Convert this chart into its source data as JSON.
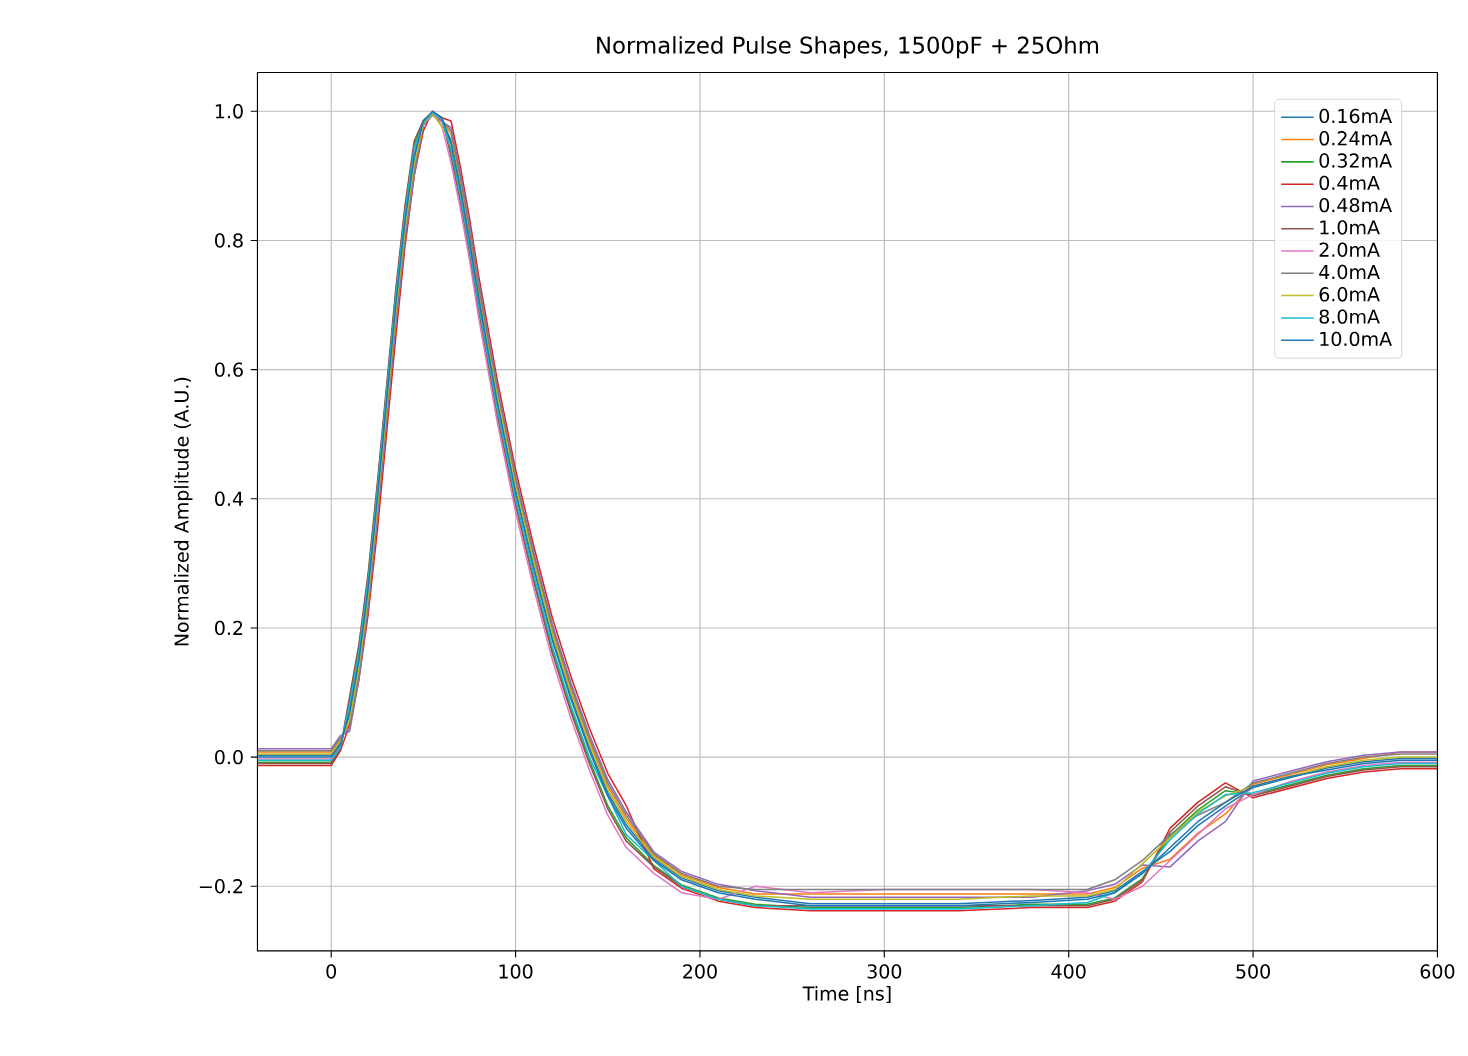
{
  "chart_data": {
    "type": "line",
    "title": "Normalized Pulse Shapes, 1500pF + 25Ohm",
    "xlabel": "Time [ns]",
    "ylabel": "Normalized Amplitude (A.U.)",
    "grid": true,
    "legend": "top right",
    "xlim": [
      -40,
      600
    ],
    "ylim": [
      -0.3,
      1.06
    ],
    "xticks": [
      0,
      100,
      200,
      300,
      400,
      500,
      600
    ],
    "yticks": [
      {
        "value": -0.2,
        "label": "−0.2"
      },
      {
        "value": 0,
        "label": "0.0"
      },
      {
        "value": 0.2,
        "label": "0.2"
      },
      {
        "value": 0.4,
        "label": "0.4"
      },
      {
        "value": 0.6,
        "label": "0.6"
      },
      {
        "value": 0.8,
        "label": "0.8"
      },
      {
        "value": 1,
        "label": "1.0"
      }
    ],
    "x": [
      -40,
      -20,
      0,
      5,
      10,
      15,
      20,
      25,
      30,
      35,
      40,
      45,
      50,
      55,
      60,
      65,
      70,
      75,
      80,
      90,
      100,
      110,
      120,
      130,
      140,
      150,
      160,
      175,
      190,
      210,
      230,
      260,
      300,
      340,
      380,
      410,
      425,
      440,
      455,
      470,
      485,
      500,
      520,
      540,
      560,
      580,
      600
    ],
    "series": [
      {
        "name": "0.16mA",
        "color": "#1f77b4",
        "values": [
          0.003,
          0.003,
          0.003,
          0.023,
          0.064,
          0.144,
          0.254,
          0.394,
          0.544,
          0.694,
          0.824,
          0.924,
          0.981,
          0.996,
          0.986,
          0.955,
          0.885,
          0.805,
          0.715,
          0.555,
          0.415,
          0.295,
          0.185,
          0.095,
          0.015,
          -0.055,
          -0.105,
          -0.157,
          -0.187,
          -0.207,
          -0.217,
          -0.227,
          -0.227,
          -0.227,
          -0.222,
          -0.217,
          -0.207,
          -0.177,
          -0.146,
          -0.106,
          -0.076,
          -0.047,
          -0.032,
          -0.017,
          -0.007,
          -0.002,
          -0.002
        ]
      },
      {
        "name": "0.24mA",
        "color": "#ff7f0e",
        "values": [
          0.008,
          0.008,
          0.008,
          0.028,
          0.052,
          0.132,
          0.242,
          0.382,
          0.532,
          0.682,
          0.812,
          0.912,
          0.98,
          0.995,
          0.985,
          0.965,
          0.895,
          0.815,
          0.725,
          0.565,
          0.425,
          0.305,
          0.195,
          0.105,
          0.025,
          -0.045,
          -0.095,
          -0.152,
          -0.182,
          -0.202,
          -0.212,
          -0.212,
          -0.212,
          -0.212,
          -0.212,
          -0.212,
          -0.202,
          -0.172,
          -0.158,
          -0.118,
          -0.088,
          -0.042,
          -0.027,
          -0.012,
          -0.002,
          0.008,
          0.008
        ]
      },
      {
        "name": "0.32mA",
        "color": "#2ca02c",
        "values": [
          -0.008,
          -0.008,
          -0.008,
          0.012,
          0.088,
          0.168,
          0.278,
          0.418,
          0.568,
          0.718,
          0.848,
          0.948,
          0.984,
          0.999,
          0.989,
          0.935,
          0.865,
          0.785,
          0.695,
          0.535,
          0.395,
          0.275,
          0.165,
          0.075,
          -0.005,
          -0.075,
          -0.125,
          -0.168,
          -0.198,
          -0.218,
          -0.228,
          -0.233,
          -0.233,
          -0.233,
          -0.228,
          -0.228,
          -0.218,
          -0.188,
          -0.122,
          -0.082,
          -0.052,
          -0.058,
          -0.043,
          -0.028,
          -0.018,
          -0.013,
          -0.013
        ]
      },
      {
        "name": "0.4mA",
        "color": "#d62728",
        "values": [
          -0.013,
          -0.013,
          -0.013,
          0.01,
          0.05,
          0.12,
          0.22,
          0.35,
          0.5,
          0.65,
          0.79,
          0.9,
          0.97,
          1,
          0.99,
          0.985,
          0.915,
          0.835,
          0.745,
          0.585,
          0.445,
          0.325,
          0.215,
          0.125,
          0.045,
          -0.025,
          -0.075,
          -0.173,
          -0.203,
          -0.223,
          -0.233,
          -0.238,
          -0.238,
          -0.238,
          -0.233,
          -0.233,
          -0.223,
          -0.193,
          -0.11,
          -0.07,
          -0.04,
          -0.063,
          -0.048,
          -0.033,
          -0.023,
          -0.018,
          -0.018
        ]
      },
      {
        "name": "0.48mA",
        "color": "#9467bd",
        "values": [
          0.013,
          0.013,
          0.013,
          0.033,
          0.04,
          0.12,
          0.23,
          0.37,
          0.52,
          0.67,
          0.8,
          0.9,
          0.979,
          0.994,
          0.984,
          0.975,
          0.905,
          0.825,
          0.735,
          0.575,
          0.435,
          0.315,
          0.205,
          0.115,
          0.035,
          -0.035,
          -0.085,
          -0.147,
          -0.177,
          -0.197,
          -0.207,
          -0.217,
          -0.217,
          -0.217,
          -0.217,
          -0.207,
          -0.197,
          -0.167,
          -0.17,
          -0.13,
          -0.1,
          -0.037,
          -0.022,
          -0.007,
          0.003,
          0.008,
          0.008
        ]
      },
      {
        "name": "1.0mA",
        "color": "#8c564b",
        "values": [
          -0.01,
          -0.01,
          -0.01,
          0.014,
          0.094,
          0.174,
          0.284,
          0.424,
          0.574,
          0.724,
          0.854,
          0.954,
          0.986,
          0.998,
          0.991,
          0.93,
          0.86,
          0.78,
          0.69,
          0.53,
          0.39,
          0.27,
          0.16,
          0.07,
          -0.01,
          -0.08,
          -0.13,
          -0.17,
          -0.2,
          -0.22,
          -0.23,
          -0.23,
          -0.23,
          -0.23,
          -0.23,
          -0.23,
          -0.22,
          -0.19,
          -0.116,
          -0.076,
          -0.046,
          -0.06,
          -0.045,
          -0.03,
          -0.02,
          -0.015,
          -0.015
        ]
      },
      {
        "name": "2.0mA",
        "color": "#e377c2",
        "values": [
          -0.003,
          -0.003,
          -0.003,
          0.017,
          0.076,
          0.156,
          0.266,
          0.406,
          0.556,
          0.706,
          0.836,
          0.936,
          0.983,
          0.998,
          0.978,
          0.92,
          0.85,
          0.77,
          0.68,
          0.52,
          0.38,
          0.26,
          0.15,
          0.06,
          -0.02,
          -0.09,
          -0.14,
          -0.18,
          -0.21,
          -0.22,
          -0.2,
          -0.21,
          -0.205,
          -0.205,
          -0.205,
          -0.21,
          -0.22,
          -0.2,
          -0.16,
          -0.12,
          -0.08,
          -0.058,
          -0.038,
          -0.023,
          -0.013,
          -0.008,
          -0.008
        ]
      },
      {
        "name": "4.0mA",
        "color": "#7f7f7f",
        "values": [
          0.01,
          0.01,
          0.01,
          0.03,
          0.046,
          0.126,
          0.236,
          0.376,
          0.526,
          0.676,
          0.806,
          0.906,
          0.982,
          0.997,
          0.987,
          0.97,
          0.9,
          0.82,
          0.73,
          0.57,
          0.43,
          0.31,
          0.2,
          0.11,
          0.03,
          -0.04,
          -0.09,
          -0.15,
          -0.18,
          -0.2,
          -0.205,
          -0.205,
          -0.205,
          -0.205,
          -0.205,
          -0.205,
          -0.19,
          -0.16,
          -0.12,
          -0.09,
          -0.07,
          -0.04,
          -0.025,
          -0.01,
          0,
          0.005,
          0.005
        ]
      },
      {
        "name": "6.0mA",
        "color": "#bcbd22",
        "values": [
          0.005,
          0.005,
          0.005,
          0.025,
          0.058,
          0.138,
          0.248,
          0.388,
          0.538,
          0.688,
          0.818,
          0.918,
          0.981,
          0.996,
          0.976,
          0.95,
          0.88,
          0.8,
          0.71,
          0.56,
          0.42,
          0.3,
          0.19,
          0.1,
          0.02,
          -0.05,
          -0.1,
          -0.155,
          -0.185,
          -0.205,
          -0.215,
          -0.22,
          -0.22,
          -0.22,
          -0.215,
          -0.215,
          -0.205,
          -0.165,
          -0.125,
          -0.085,
          -0.06,
          -0.045,
          -0.03,
          -0.015,
          -0.005,
          0,
          0
        ]
      },
      {
        "name": "8.0mA",
        "color": "#17becf",
        "values": [
          -0.005,
          -0.005,
          -0.005,
          0.015,
          0.082,
          0.162,
          0.272,
          0.412,
          0.562,
          0.712,
          0.842,
          0.942,
          0.983,
          0.998,
          0.988,
          0.94,
          0.87,
          0.79,
          0.7,
          0.54,
          0.4,
          0.28,
          0.17,
          0.08,
          0,
          -0.06,
          -0.12,
          -0.16,
          -0.2,
          -0.22,
          -0.23,
          -0.235,
          -0.235,
          -0.235,
          -0.23,
          -0.225,
          -0.21,
          -0.18,
          -0.128,
          -0.088,
          -0.058,
          -0.055,
          -0.04,
          -0.025,
          -0.015,
          -0.01,
          -0.01
        ]
      },
      {
        "name": "10.0mA",
        "color": "#1f77b4",
        "values": [
          0,
          0,
          0,
          0.02,
          0.07,
          0.15,
          0.26,
          0.4,
          0.55,
          0.7,
          0.83,
          0.93,
          0.985,
          1,
          0.99,
          0.95,
          0.88,
          0.8,
          0.71,
          0.55,
          0.41,
          0.29,
          0.18,
          0.09,
          0.01,
          -0.06,
          -0.11,
          -0.16,
          -0.19,
          -0.21,
          -0.22,
          -0.23,
          -0.23,
          -0.23,
          -0.225,
          -0.22,
          -0.21,
          -0.18,
          -0.14,
          -0.1,
          -0.07,
          -0.045,
          -0.03,
          -0.02,
          -0.01,
          -0.005,
          -0.005
        ]
      }
    ]
  }
}
